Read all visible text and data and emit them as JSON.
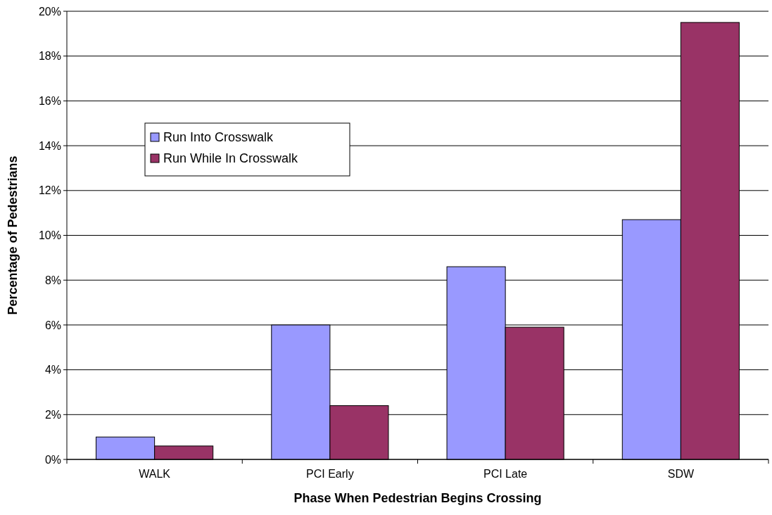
{
  "chart_data": {
    "type": "bar",
    "xlabel": "Phase When Pedestrian Begins Crossing",
    "ylabel": "Percentage of Pedestrians",
    "categories": [
      "WALK",
      "PCI Early",
      "PCI Late",
      "SDW"
    ],
    "series": [
      {
        "name": "Run Into Crosswalk",
        "color": "#9999ff",
        "values": [
          1.0,
          6.0,
          8.6,
          10.7
        ]
      },
      {
        "name": "Run While In Crosswalk",
        "color": "#993366",
        "values": [
          0.6,
          2.4,
          5.9,
          19.5
        ]
      }
    ],
    "ylim": [
      0,
      20
    ],
    "yticks": [
      {
        "value": 0,
        "label": "0%"
      },
      {
        "value": 2,
        "label": "2%"
      },
      {
        "value": 4,
        "label": "4%"
      },
      {
        "value": 6,
        "label": "6%"
      },
      {
        "value": 8,
        "label": "8%"
      },
      {
        "value": 10,
        "label": "10%"
      },
      {
        "value": 12,
        "label": "12%"
      },
      {
        "value": 14,
        "label": "14%"
      },
      {
        "value": 16,
        "label": "16%"
      },
      {
        "value": 18,
        "label": "18%"
      },
      {
        "value": 20,
        "label": "20%"
      }
    ],
    "grid": "y",
    "legend": "top left"
  }
}
